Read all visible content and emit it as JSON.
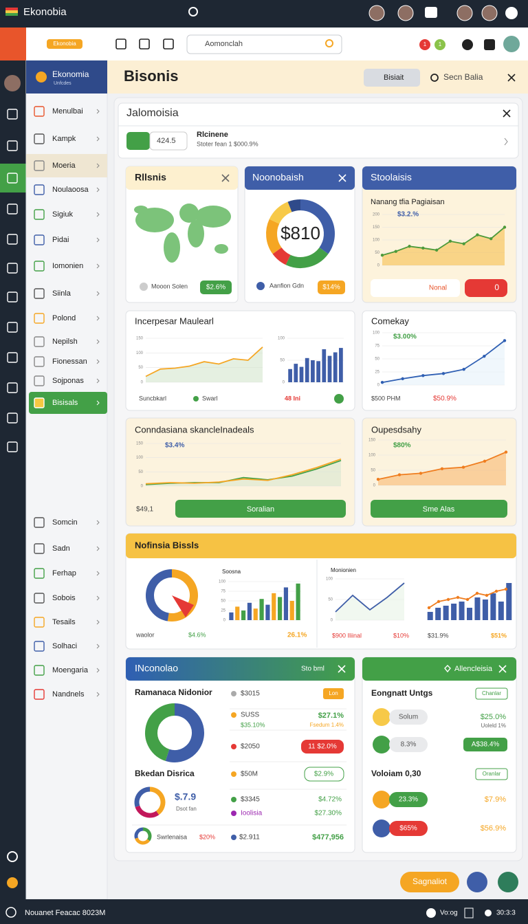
{
  "top_bar": {
    "title": "Ekonobia"
  },
  "toolbar": {
    "brand": "Ekonobia",
    "search": "Aomonclah",
    "badges": [
      "1",
      "1"
    ]
  },
  "sidebar": {
    "title": "Ekonomia",
    "subtitle": "Unfcdes",
    "items": [
      "Menulbai",
      "Kampk",
      "Moeria",
      "Noulaoosa",
      "Sigiuk",
      "Pidai",
      "Iomonien",
      "Siinla",
      "Polond",
      "Nepilsh",
      "Fionessan",
      "Sojponas",
      "Bisisals"
    ],
    "active": 12,
    "bottom_items": [
      "Somcin",
      "Sadn",
      "Ferhap",
      "Sobois",
      "Tesails",
      "Solhaci",
      "Moengaria",
      "Nandnels"
    ]
  },
  "header": {
    "title": "Bisonis",
    "button": "Bisiait",
    "search": "Secn Balia"
  },
  "panel": {
    "title": "Jalomoisia",
    "value": "424.5",
    "label": "Rlcinene",
    "detail": "Stoter fean 1 $000.9%"
  },
  "map_card": {
    "title": "Rllsnis",
    "legend": "Mooon Solen",
    "badge": "$2.6%"
  },
  "donut_card": {
    "title": "Noonobaish",
    "center": "$810",
    "legend": "Aanfion Gdn",
    "badge": "$14%",
    "donut": {
      "values": [
        35,
        22,
        8,
        17,
        12,
        6
      ],
      "colors": [
        "#3f5ea8",
        "#43a047",
        "#e53935",
        "#f5a623",
        "#f7c948",
        "#2f4a8a"
      ]
    }
  },
  "trend_card": {
    "title": "Stoolaisis",
    "subtitle": "Nanang tfia Pagiaisan",
    "annotation": "$3.2.%",
    "input": "Nonal",
    "button": "0",
    "chart": {
      "ylim": [
        0,
        200
      ],
      "yticks": [
        0,
        50,
        100,
        150,
        200
      ],
      "fill": "#f5b942",
      "dots": true,
      "series": [
        {
          "color": "#4c9a3a",
          "values": [
            40,
            55,
            75,
            68,
            60,
            95,
            85,
            120,
            105,
            150
          ]
        }
      ]
    }
  },
  "mix_card": {
    "title": "Incerpesar Maulearl",
    "legend": [
      "Suncbkarl",
      "Swarl",
      "48 Ini"
    ],
    "line": {
      "ylim": [
        0,
        150
      ],
      "yticks": [
        0,
        50,
        100,
        150
      ],
      "fill": "#cfe3c8",
      "series": [
        {
          "color": "#f5a623",
          "values": [
            20,
            45,
            48,
            55,
            70,
            62,
            80,
            75,
            120
          ]
        }
      ]
    },
    "bars": {
      "ylim": [
        0,
        100
      ],
      "yticks": [
        0,
        50,
        100
      ],
      "values": [
        30,
        42,
        35,
        55,
        50,
        48,
        75,
        60,
        68,
        78
      ],
      "colors": [
        "#3f5ea8"
      ]
    }
  },
  "growth_card": {
    "title": "Comekay",
    "annotation": "$3.00%",
    "footer": [
      "$500 PHM",
      "$50.9%"
    ],
    "chart": {
      "ylim": [
        0,
        100
      ],
      "yticks": [
        0,
        25,
        50,
        75,
        100
      ],
      "fill": "#e4f0fa",
      "dots": true,
      "series": [
        {
          "color": "#2f5fb3",
          "values": [
            5,
            12,
            18,
            22,
            30,
            55,
            85
          ]
        }
      ]
    }
  },
  "deals_card": {
    "title": "Conndasiana skancleInadeals",
    "annotation": "$3.4%",
    "amount": "$49,1",
    "button": "Soralian",
    "chart": {
      "ylim": [
        0,
        150
      ],
      "yticks": [
        0,
        50,
        100,
        150
      ],
      "fill": "#d6e6cf",
      "series": [
        {
          "color": "#43a047",
          "values": [
            5,
            10,
            12,
            12,
            30,
            22,
            35,
            60,
            90
          ]
        },
        {
          "color": "#f5a623",
          "values": [
            8,
            12,
            10,
            14,
            25,
            20,
            40,
            65,
            95
          ]
        }
      ]
    }
  },
  "output_card": {
    "title": "Oupesdsahy",
    "annotation": "$80%",
    "button": "Sme Alas",
    "chart": {
      "ylim": [
        0,
        150
      ],
      "yticks": [
        0,
        50,
        100,
        150
      ],
      "fill": "#f7b267",
      "dots": true,
      "series": [
        {
          "color": "#ef7d1f",
          "values": [
            20,
            35,
            40,
            55,
            60,
            80,
            110
          ]
        }
      ]
    }
  },
  "summary_card": {
    "title": "Nofinsia Bissls",
    "gauge": {
      "label": "waolor",
      "value_text": "$4.6%",
      "donut": {
        "values": [
          50,
          45
        ],
        "colors": [
          "#f5a623",
          "#3f5ea8"
        ]
      }
    },
    "bars": {
      "title": "Soosna",
      "label": "26.1%",
      "chart": {
        "ylim": [
          0,
          100
        ],
        "yticks": [
          0,
          25,
          50,
          75,
          100
        ],
        "values": [
          20,
          35,
          25,
          45,
          30,
          55,
          40,
          70,
          60,
          85,
          50,
          95
        ],
        "colors": [
          "#3f5ea8",
          "#f5a623",
          "#43a047"
        ]
      }
    },
    "line": {
      "title": "Monionien",
      "labels": [
        "$900 Iliinal",
        "$10%"
      ],
      "chart": {
        "ylim": [
          0,
          100
        ],
        "yticks": [
          0,
          50,
          100
        ],
        "fill": "#e6f2e4",
        "series": [
          {
            "color": "#3f5ea8",
            "values": [
              20,
              60,
              25,
              55,
              90
            ]
          }
        ]
      }
    },
    "combo": {
      "labels": [
        "$31.9%",
        "$51%"
      ],
      "bars": {
        "ylim": [
          0,
          100
        ],
        "values": [
          20,
          30,
          35,
          40,
          45,
          30,
          55,
          50,
          65,
          45,
          90
        ],
        "colors": [
          "#3f5ea8"
        ]
      },
      "line": {
        "ylim": [
          0,
          100
        ],
        "dots": true,
        "series": [
          {
            "color": "#ef7d1f",
            "values": [
              30,
              45,
              50,
              55,
              50,
              65,
              60,
              70,
              75
            ]
          }
        ]
      }
    }
  },
  "income_card": {
    "title": "INconolao",
    "action": "Sto bml",
    "donut_title": "Ramanaca Nidonior",
    "donut": {
      "values": [
        55,
        45
      ],
      "colors": [
        "#3f5ea8",
        "#43a047"
      ]
    },
    "rows": [
      {
        "label": "$3015",
        "badge": "Lon"
      },
      {
        "label": "SUSS",
        "sub": "$35.10%",
        "value": "$27.1%",
        "note": "Fsedum 1.4%"
      },
      {
        "label": "$2050",
        "badge": "11 $2.0%"
      },
      {
        "label": "$50M",
        "badge": "$2.9%"
      }
    ],
    "section_title": "Bkedan Disrica",
    "mini_donut": {
      "values": [
        40,
        30,
        30
      ],
      "colors": [
        "#f5a623",
        "#c2185b",
        "#3f5ea8"
      ]
    },
    "mini_value": "$.7.9",
    "mini_sub": "Dsot fan",
    "mini_rows": [
      {
        "label": "$3345",
        "value": "$4.72%"
      },
      {
        "label": "Ioolisia",
        "value": "$27.30%"
      }
    ],
    "footer": {
      "donut": {
        "values": [
          35,
          35,
          30
        ],
        "colors": [
          "#43a047",
          "#f5a623",
          "#3f5ea8"
        ]
      },
      "label": "Swrlenaisa",
      "value": "$20%",
      "amount": "$2.911",
      "total": "$477,956"
    }
  },
  "alert_card": {
    "title": "Allencleisia",
    "section1": "Eongnatt Untgs",
    "tag1": "Chanlar",
    "rows1": [
      {
        "pill": "Solum",
        "value": "$25.0%",
        "note": "Uoleld 1%"
      },
      {
        "pill": "8.3%",
        "value": "A$38.4%"
      }
    ],
    "section2": "Voloiam 0,30",
    "tag2": "Oranlar",
    "rows2": [
      {
        "pill": "23.3%",
        "value": "$7.9%"
      },
      {
        "pill": "$65%",
        "value": "$56.9%"
      }
    ]
  },
  "actions": {
    "button": "Sagnaliot"
  },
  "status_bar": {
    "left": "Nouanet Feacac 8023M",
    "center": "Vo:og",
    "right": "30:3:3"
  }
}
